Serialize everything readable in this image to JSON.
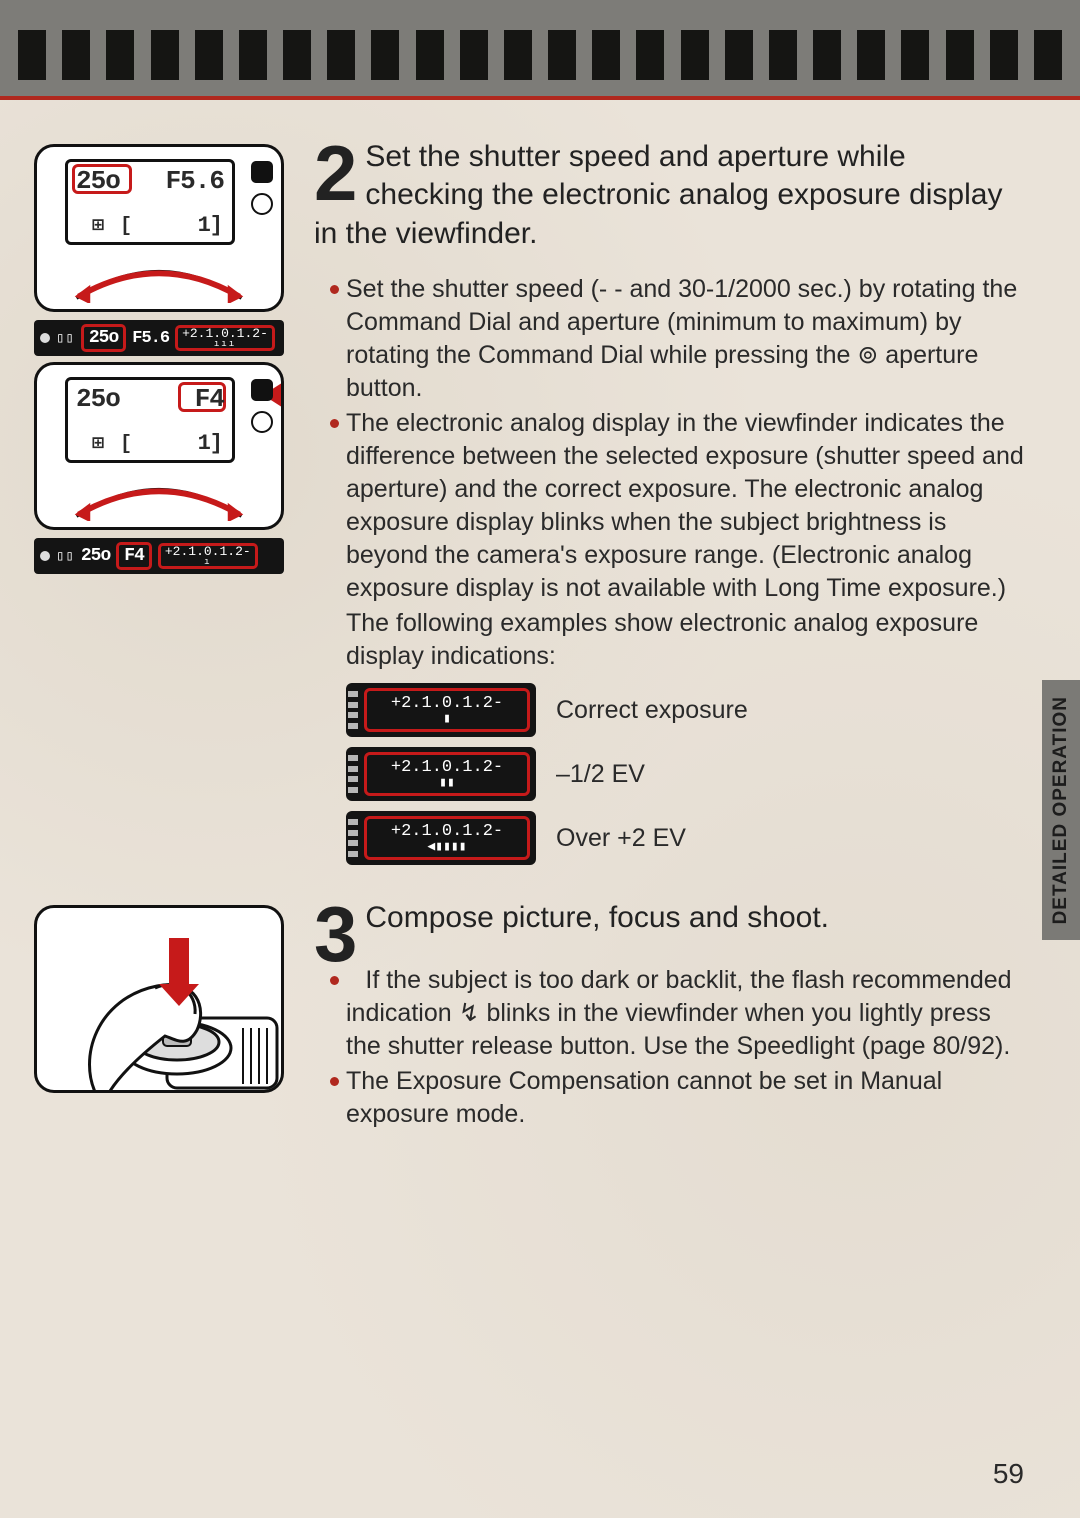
{
  "page_number": "59",
  "sidetab": "DETAILED OPERATION",
  "colors": {
    "accent_red": "#c61a1a",
    "bullet_red": "#b0281e",
    "filmstrip_bg": "#7d7c78",
    "sprocket": "#151513",
    "page_bg": "#eae3d9",
    "text": "#2a2a2a",
    "vf_bg": "#141414",
    "sidetab_bg": "#7b7a76"
  },
  "filmstrip": {
    "sprocket_count": 24
  },
  "step2": {
    "number": "2",
    "heading": "Set the shutter speed and aperture while checking the electronic analog exposure display in the viewfinder.",
    "bullets": [
      "Set the shutter speed (- - and 30-1/2000 sec.) by rotating the Command Dial and aperture (minimum to maximum) by rotating the Command Dial while pressing the ⊚ aperture button.",
      "The electronic analog display in the viewfinder indicates the difference between the selected exposure (shutter speed and aperture) and the correct exposure. The electronic analog exposure display blinks when the subject brightness is beyond the camera's exposure range. (Electronic analog exposure display is not available with Long Time exposure.)"
    ],
    "after": "The following examples show electronic analog exposure display indications:",
    "lcd1": {
      "shutter": "25o",
      "shutter_hl": true,
      "aperture": "F5.6",
      "aperture_hl": false,
      "bl": "⊞ [",
      "br": "1]"
    },
    "vf1": {
      "shutter": "25o",
      "shutter_hl": true,
      "aperture": "F5.6",
      "aperture_hl": false,
      "scale": "+2.1.0.1.2-"
    },
    "lcd2": {
      "shutter": "25o",
      "shutter_hl": false,
      "aperture": "F4",
      "aperture_hl": true,
      "bl": "⊞ [",
      "br": "1]"
    },
    "vf2": {
      "shutter": "25o",
      "shutter_hl": false,
      "aperture": "F4",
      "aperture_hl": true,
      "scale": "+2.1.0.1.2-"
    },
    "indicators": [
      {
        "scale": "+2.1.0.1.2-",
        "marks": "▮",
        "label": "Correct exposure"
      },
      {
        "scale": "+2.1.0.1.2-",
        "marks": "▮▮",
        "label": "–1/2 EV"
      },
      {
        "scale": "+2.1.0.1.2-",
        "marks": "◀▮▮▮▮",
        "label": "Over +2 EV"
      }
    ]
  },
  "step3": {
    "number": "3",
    "heading": "Compose picture, focus and shoot.",
    "bullets": [
      "If the subject is too dark or backlit, the flash recommended indication ↯ blinks in the viewfinder when you lightly press the shutter release button. Use the Speedlight (page 80/92).",
      "The Exposure Compensation cannot be set in Manual exposure mode."
    ]
  }
}
